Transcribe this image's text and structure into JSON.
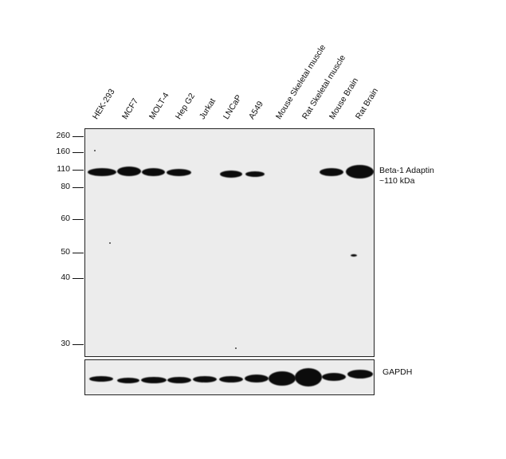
{
  "lanes": [
    "HEK-293",
    "MCF7",
    "MOLT-4",
    "Hep G2",
    "Jurkat",
    "LNCaP",
    "A549",
    "Mouse Skeletal muscle",
    "Rat Skeletal muscle",
    "Mouse Brain",
    "Rat Brain"
  ],
  "mw_markers": [
    "260",
    "160",
    "110",
    "80",
    "60",
    "50",
    "40",
    "30"
  ],
  "target": {
    "name": "Beta-1 Adaptin",
    "size": "~110 kDa"
  },
  "loading_control": "GAPDH"
}
